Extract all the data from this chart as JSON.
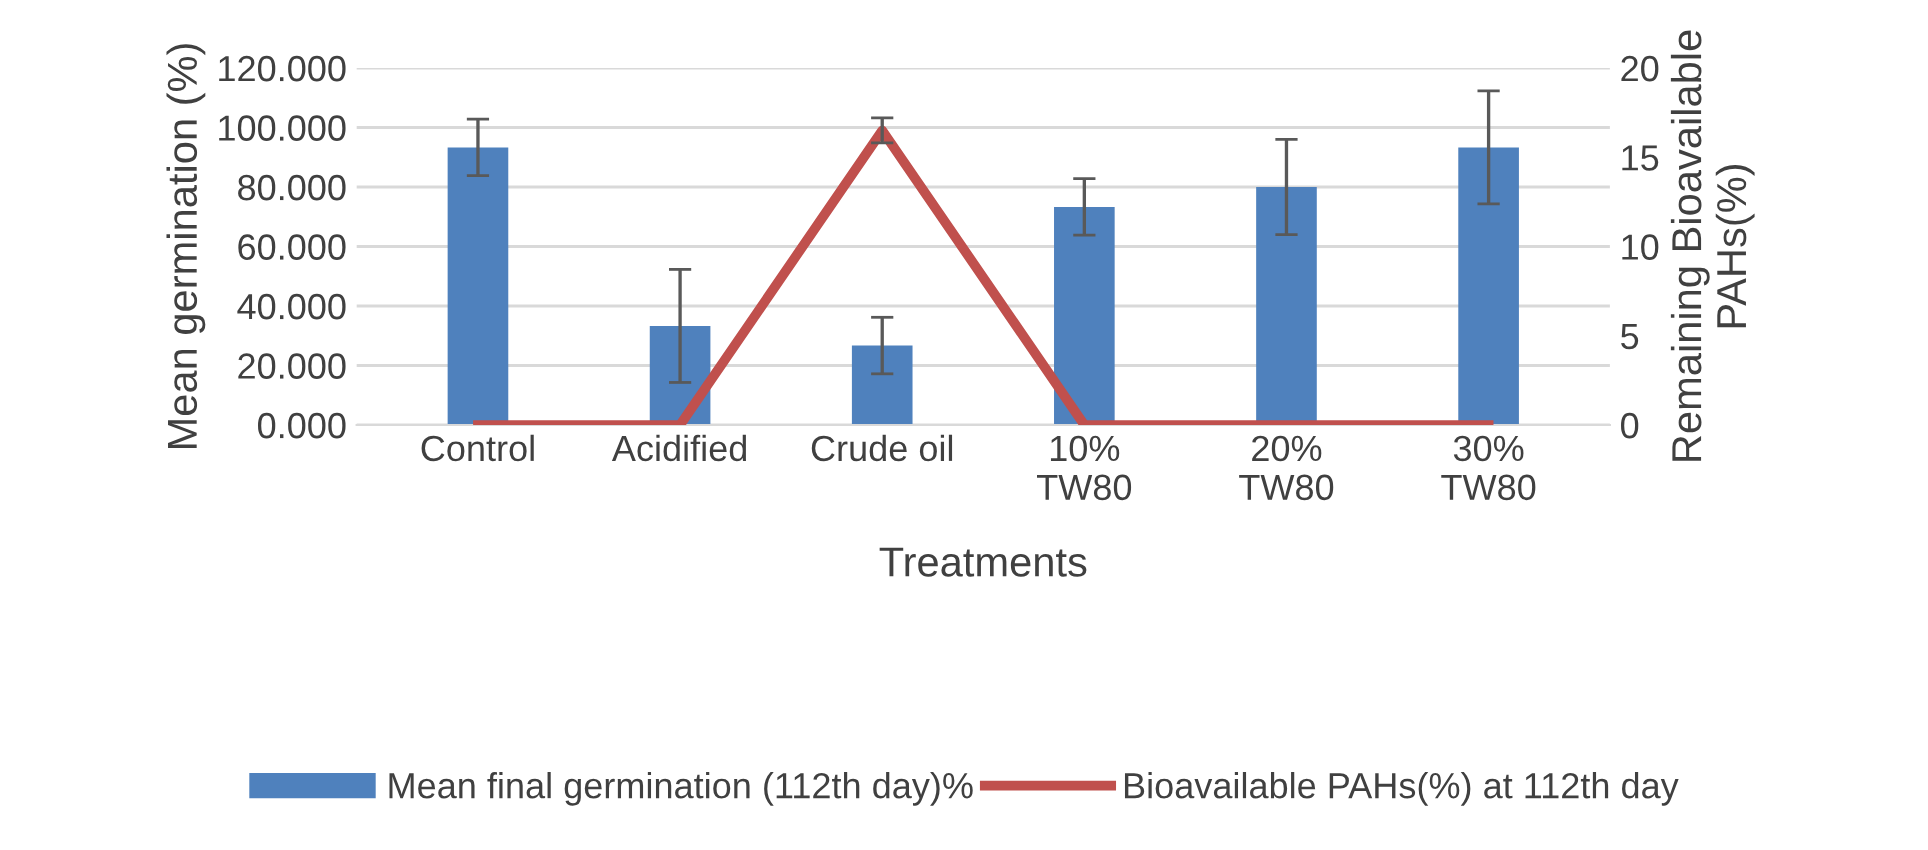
{
  "chart_data": {
    "type": "bar",
    "xlabel": "Treatments",
    "ylabel": "Mean germination (%)",
    "y2label": "Remaining Bioavailable\nPAHs(%)",
    "categories": [
      "Control",
      "Acidified",
      "Crude oil",
      "10%\nTW80",
      "20%\nTW80",
      "30%\nTW80"
    ],
    "series": [
      {
        "name": "Mean final germination (112th day)%",
        "color": "#4f81bd",
        "values": [
          93.3,
          33.3,
          26.7,
          73.3,
          80,
          93.3
        ],
        "errors": [
          9.5,
          19,
          9.5,
          9.5,
          16,
          19
        ]
      },
      {
        "name": "Bioavailable PAHs(%) at 112th day",
        "type": "line",
        "axis": "y2",
        "color": "#c0504d",
        "values": [
          0,
          0,
          16.5,
          0,
          0,
          0
        ],
        "errors": [
          null,
          null,
          0.7,
          null,
          null,
          null
        ]
      }
    ],
    "ylim": [
      0,
      120
    ],
    "yticks": [
      {
        "value": 0,
        "label": "0.000"
      },
      {
        "value": 20,
        "label": "20.000"
      },
      {
        "value": 40,
        "label": "40.000"
      },
      {
        "value": 60,
        "label": "60.000"
      },
      {
        "value": 80,
        "label": "80.000"
      },
      {
        "value": 100,
        "label": "100.000"
      },
      {
        "value": 120,
        "label": "120.000"
      }
    ],
    "y2lim": [
      0,
      20
    ],
    "y2ticks": [
      0,
      5,
      10,
      15,
      20
    ],
    "grid": "y",
    "legend": "bottom",
    "marker": "none",
    "line_style": "solid"
  }
}
